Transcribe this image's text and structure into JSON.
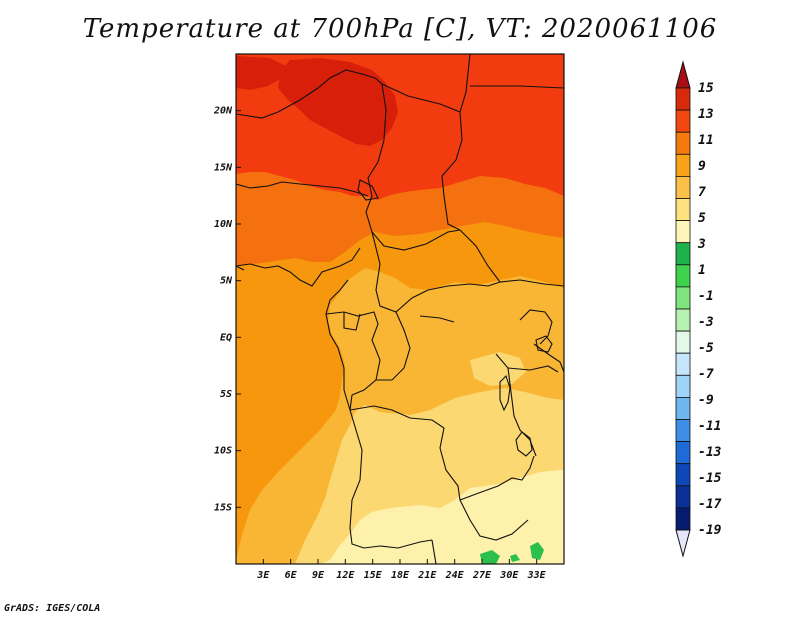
{
  "title": "Temperature at 700hPa [C], VT: 2020061106",
  "footer": "GrADS: IGES/COLA",
  "map": {
    "lon_range": [
      0,
      36
    ],
    "lat_range": [
      -20,
      25
    ],
    "lon_ticks": [
      "3E",
      "6E",
      "9E",
      "12E",
      "15E",
      "18E",
      "21E",
      "24E",
      "27E",
      "30E",
      "33E"
    ],
    "lat_ticks": [
      "20N",
      "15N",
      "10N",
      "5N",
      "EQ",
      "5S",
      "10S",
      "15S"
    ]
  },
  "colorbar": {
    "labels": [
      "15",
      "13",
      "11",
      "9",
      "7",
      "5",
      "3",
      "1",
      "-1",
      "-3",
      "-5",
      "-7",
      "-9",
      "-11",
      "-13",
      "-15",
      "-17",
      "-19"
    ],
    "colors": [
      "#a50f15",
      "#d62a0a",
      "#f0480e",
      "#f57a0e",
      "#f8a11a",
      "#fbc04a",
      "#fde27f",
      "#fcf5b8",
      "#1eb34a",
      "#3ed24d",
      "#7ee57e",
      "#b7f2b0",
      "#e3f8e9",
      "#c7e6fb",
      "#9fd3f7",
      "#6fb5f0",
      "#3c8ee6",
      "#1e6ad6",
      "#0e47b8",
      "#0a2f96",
      "#061c6f",
      "#e6e6fa"
    ]
  },
  "colors": {
    "c15": "#d81f09",
    "c13": "#f23c0f",
    "c11": "#f5700f",
    "c9": "#f7970e",
    "c7": "#f9b634",
    "c5": "#fbd872",
    "c3": "#fdf1ac",
    "green": "#2bbf4c"
  }
}
